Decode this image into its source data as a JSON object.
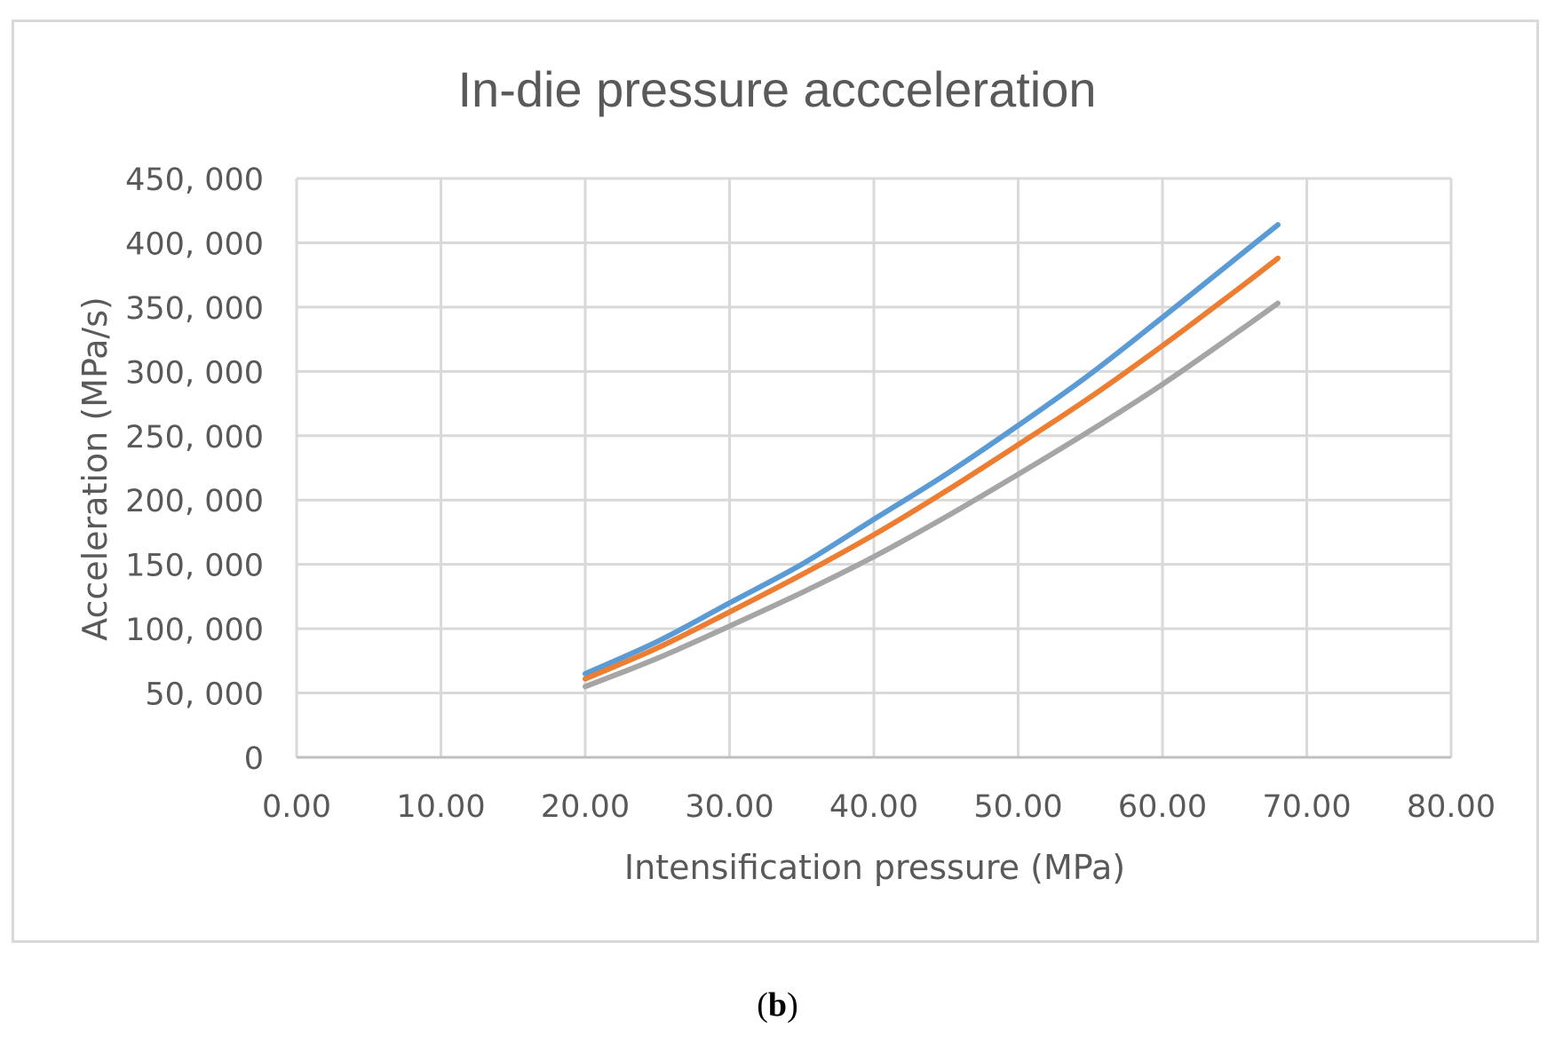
{
  "chart_data": {
    "type": "line",
    "title": "In-die pressure accceleration",
    "xlabel": "Intensification pressure (MPa)",
    "ylabel": "Acceleration (MPa/s)",
    "xlim": [
      0,
      80
    ],
    "ylim": [
      0,
      450000
    ],
    "x_ticks": [
      "0.00",
      "10.00",
      "20.00",
      "30.00",
      "40.00",
      "50.00",
      "60.00",
      "70.00",
      "80.00"
    ],
    "y_ticks": [
      "0",
      "50, 000",
      "100, 000",
      "150, 000",
      "200, 000",
      "250, 000",
      "300, 000",
      "350, 000",
      "400, 000",
      "450, 000"
    ],
    "grid": true,
    "series": [
      {
        "color": "#5B9BD5",
        "x": [
          20,
          25,
          30,
          35,
          40,
          45,
          50,
          55,
          60,
          65,
          68
        ],
        "y": [
          65000,
          90000,
          120000,
          150000,
          185000,
          220000,
          258000,
          298000,
          342000,
          387000,
          414000
        ]
      },
      {
        "color": "#ED7D31",
        "x": [
          20,
          25,
          30,
          35,
          40,
          45,
          50,
          55,
          60,
          65,
          68
        ],
        "y": [
          61000,
          85000,
          113000,
          142000,
          173000,
          207000,
          243000,
          280000,
          320000,
          362000,
          388000
        ]
      },
      {
        "color": "#A5A5A5",
        "x": [
          20,
          25,
          30,
          35,
          40,
          45,
          50,
          55,
          60,
          65,
          68
        ],
        "y": [
          55000,
          77000,
          102000,
          128000,
          156000,
          187000,
          220000,
          254000,
          290000,
          329000,
          353000
        ]
      }
    ]
  },
  "caption": {
    "open": "(",
    "letter": "b",
    "close": ")"
  }
}
